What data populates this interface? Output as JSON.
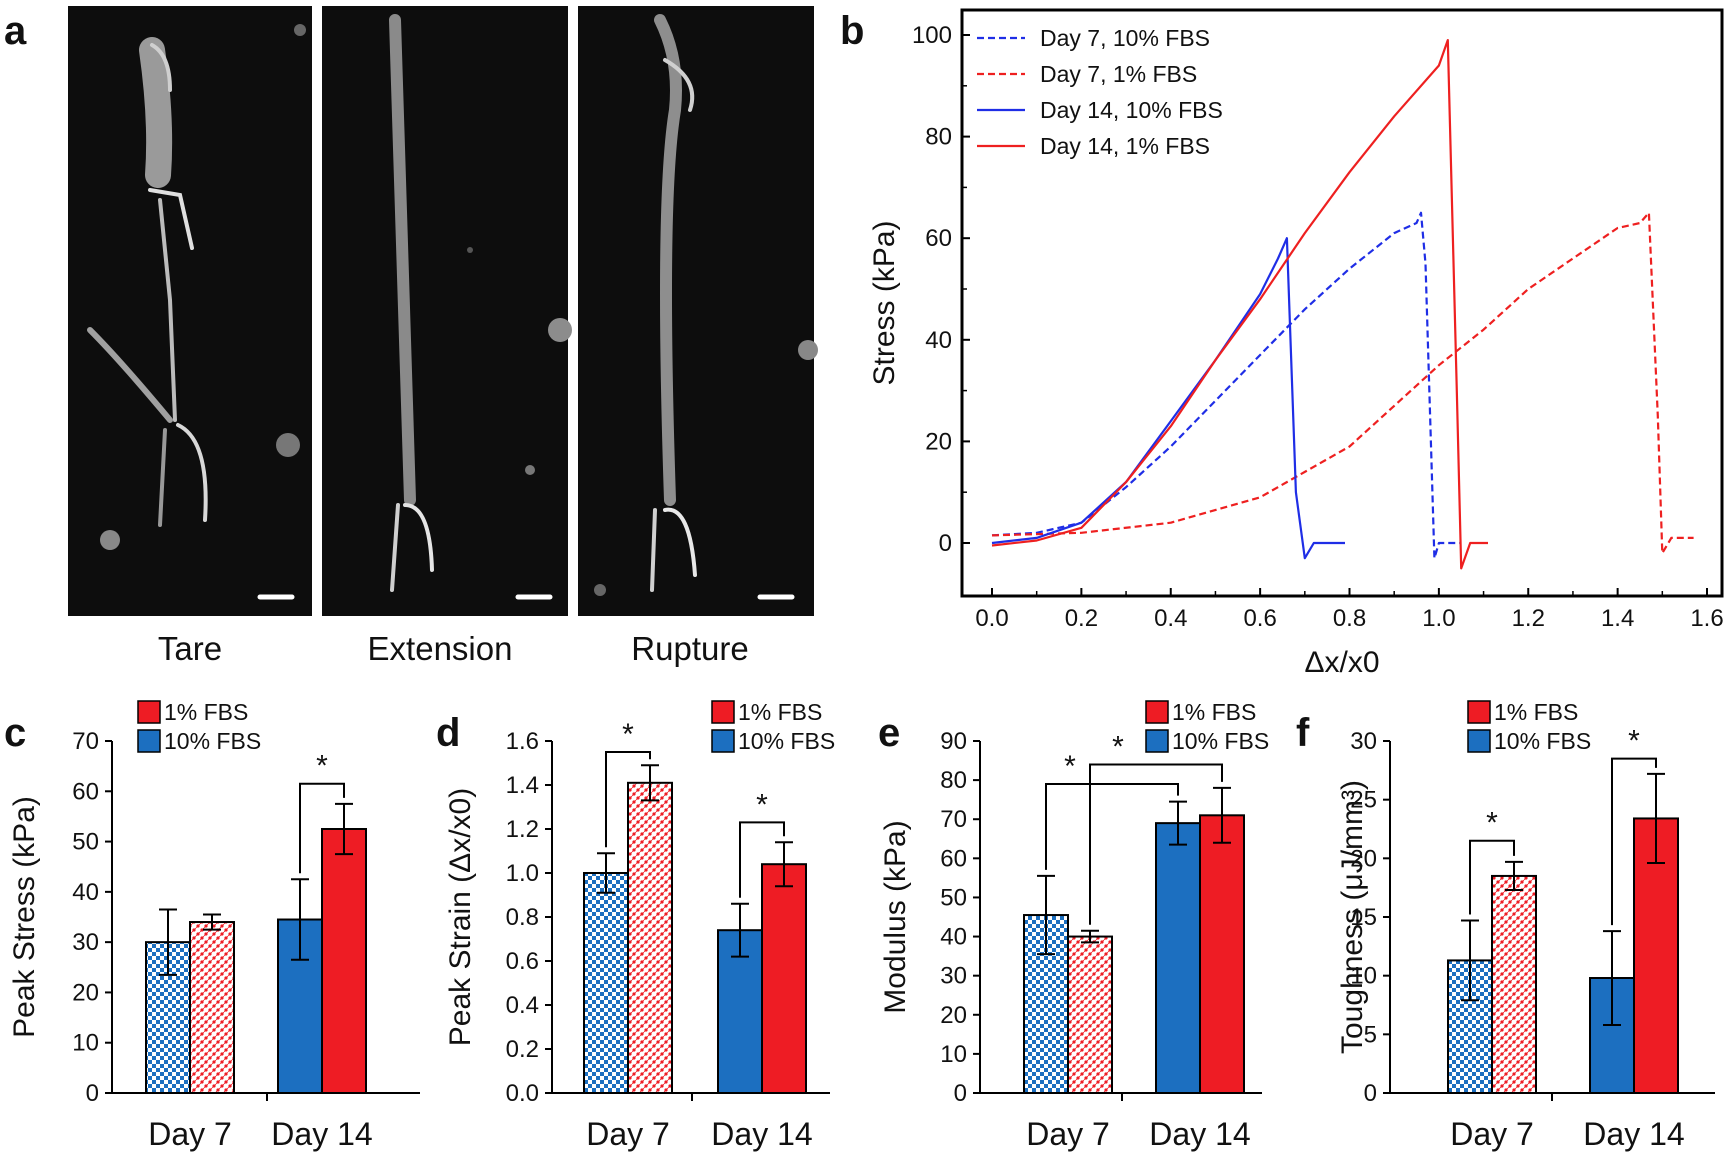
{
  "panel_labels": {
    "a": "a",
    "b": "b",
    "c": "c",
    "d": "d",
    "e": "e",
    "f": "f"
  },
  "colors": {
    "blue": "#1c6fc0",
    "red": "#ee1c24",
    "line_blue": "#1f2ee6",
    "line_red": "#ee2020",
    "photo_bg": "#0d0d0d"
  },
  "panel_a": {
    "captions": [
      "Tare",
      "Extension",
      "Rupture"
    ]
  },
  "chart_data": [
    {
      "id": "b",
      "type": "line",
      "xlabel": "Δx/x0",
      "ylabel": "Stress (kPa)",
      "xlim": [
        0,
        1.6
      ],
      "ylim": [
        -10,
        105
      ],
      "xticks": [
        "0.0",
        "0.2",
        "0.4",
        "0.6",
        "0.8",
        "1.0",
        "1.2",
        "1.4",
        "1.6"
      ],
      "yticks": [
        "0",
        "20",
        "40",
        "60",
        "80",
        "100"
      ],
      "legend_position": "top-left",
      "series": [
        {
          "name": "Day 7, 10% FBS",
          "color": "#1f2ee6",
          "dash": true,
          "x": [
            0,
            0.1,
            0.2,
            0.3,
            0.4,
            0.5,
            0.6,
            0.7,
            0.8,
            0.9,
            0.95,
            0.96,
            0.97,
            0.99,
            1.0,
            1.02,
            1.05
          ],
          "y": [
            1.5,
            2,
            4,
            11,
            19,
            28,
            37,
            46,
            54,
            61,
            63,
            65,
            55,
            -3,
            0,
            0,
            0
          ]
        },
        {
          "name": "Day 7, 1% FBS",
          "color": "#ee2020",
          "dash": true,
          "x": [
            0,
            0.2,
            0.4,
            0.6,
            0.8,
            1.0,
            1.1,
            1.2,
            1.3,
            1.4,
            1.45,
            1.47,
            1.49,
            1.5,
            1.52,
            1.57
          ],
          "y": [
            1.5,
            2,
            4,
            9,
            19,
            35,
            42,
            50,
            56,
            62,
            63,
            65,
            25,
            -2,
            1,
            1
          ]
        },
        {
          "name": "Day 14, 10% FBS",
          "color": "#1f2ee6",
          "dash": false,
          "x": [
            0,
            0.1,
            0.2,
            0.3,
            0.4,
            0.5,
            0.6,
            0.64,
            0.66,
            0.68,
            0.7,
            0.72,
            0.79
          ],
          "y": [
            0,
            1,
            4,
            12,
            24,
            36,
            49,
            56,
            60,
            10,
            -3,
            0,
            0
          ]
        },
        {
          "name": "Day 14, 1% FBS",
          "color": "#ee2020",
          "dash": false,
          "x": [
            0,
            0.1,
            0.2,
            0.3,
            0.4,
            0.5,
            0.6,
            0.7,
            0.8,
            0.9,
            1.0,
            1.02,
            1.04,
            1.05,
            1.07,
            1.11
          ],
          "y": [
            -0.5,
            0.5,
            3,
            12,
            23,
            36,
            48,
            61,
            73,
            84,
            94,
            99,
            30,
            -5,
            0,
            0
          ]
        }
      ]
    },
    {
      "id": "c",
      "type": "bar",
      "ylabel": "Peak Stress (kPa)",
      "ylim": [
        0,
        70
      ],
      "yticks": [
        "0",
        "10",
        "20",
        "30",
        "40",
        "50",
        "60",
        "70"
      ],
      "categories": [
        "Day 7",
        "Day 14"
      ],
      "legend": [
        "1% FBS",
        "10% FBS"
      ],
      "series": [
        {
          "name": "10% FBS",
          "values": [
            30,
            34.5
          ],
          "errors": [
            6.5,
            8
          ]
        },
        {
          "name": "1% FBS",
          "values": [
            34,
            52.5
          ],
          "errors": [
            1.5,
            5
          ]
        }
      ],
      "significance": [
        {
          "label": "*",
          "group": "Day 14"
        }
      ]
    },
    {
      "id": "d",
      "type": "bar",
      "ylabel": "Peak Strain  (Δx/x0)",
      "ylim": [
        0,
        1.6
      ],
      "yticks": [
        "0.0",
        "0.2",
        "0.4",
        "0.6",
        "0.8",
        "1.0",
        "1.2",
        "1.4",
        "1.6"
      ],
      "categories": [
        "Day 7",
        "Day 14"
      ],
      "legend": [
        "1% FBS",
        "10% FBS"
      ],
      "series": [
        {
          "name": "10% FBS",
          "values": [
            1.0,
            0.74
          ],
          "errors": [
            0.09,
            0.12
          ]
        },
        {
          "name": "1% FBS",
          "values": [
            1.41,
            1.04
          ],
          "errors": [
            0.08,
            0.1
          ]
        }
      ],
      "significance": [
        {
          "label": "*",
          "group": "Day 7"
        },
        {
          "label": "*",
          "group": "Day 14"
        }
      ]
    },
    {
      "id": "e",
      "type": "bar",
      "ylabel": "Modulus (kPa)",
      "ylim": [
        0,
        90
      ],
      "yticks": [
        "0",
        "10",
        "20",
        "30",
        "40",
        "50",
        "60",
        "70",
        "80",
        "90"
      ],
      "categories": [
        "Day 7",
        "Day 14"
      ],
      "legend": [
        "1% FBS",
        "10% FBS"
      ],
      "series": [
        {
          "name": "10% FBS",
          "values": [
            45.5,
            69
          ],
          "errors": [
            10,
            5.5
          ]
        },
        {
          "name": "1% FBS",
          "values": [
            40,
            71
          ],
          "errors": [
            1.5,
            7
          ]
        }
      ],
      "significance": [
        {
          "label": "*",
          "group": "10% FBS Day 7 vs Day 14"
        },
        {
          "label": "*",
          "group": "1% FBS Day 7 vs Day 14"
        }
      ]
    },
    {
      "id": "f",
      "type": "bar",
      "ylabel": "Toughness (μJ/mm³)",
      "ylim": [
        0,
        30
      ],
      "yticks": [
        "0",
        "5",
        "10",
        "15",
        "20",
        "25",
        "30"
      ],
      "categories": [
        "Day 7",
        "Day 14"
      ],
      "legend": [
        "1% FBS",
        "10% FBS"
      ],
      "series": [
        {
          "name": "10% FBS",
          "values": [
            11.3,
            9.8
          ],
          "errors": [
            3.4,
            4
          ]
        },
        {
          "name": "1% FBS",
          "values": [
            18.5,
            23.4
          ],
          "errors": [
            1.2,
            3.8
          ]
        }
      ],
      "significance": [
        {
          "label": "*",
          "group": "Day 7"
        },
        {
          "label": "*",
          "group": "Day 14"
        }
      ]
    }
  ]
}
